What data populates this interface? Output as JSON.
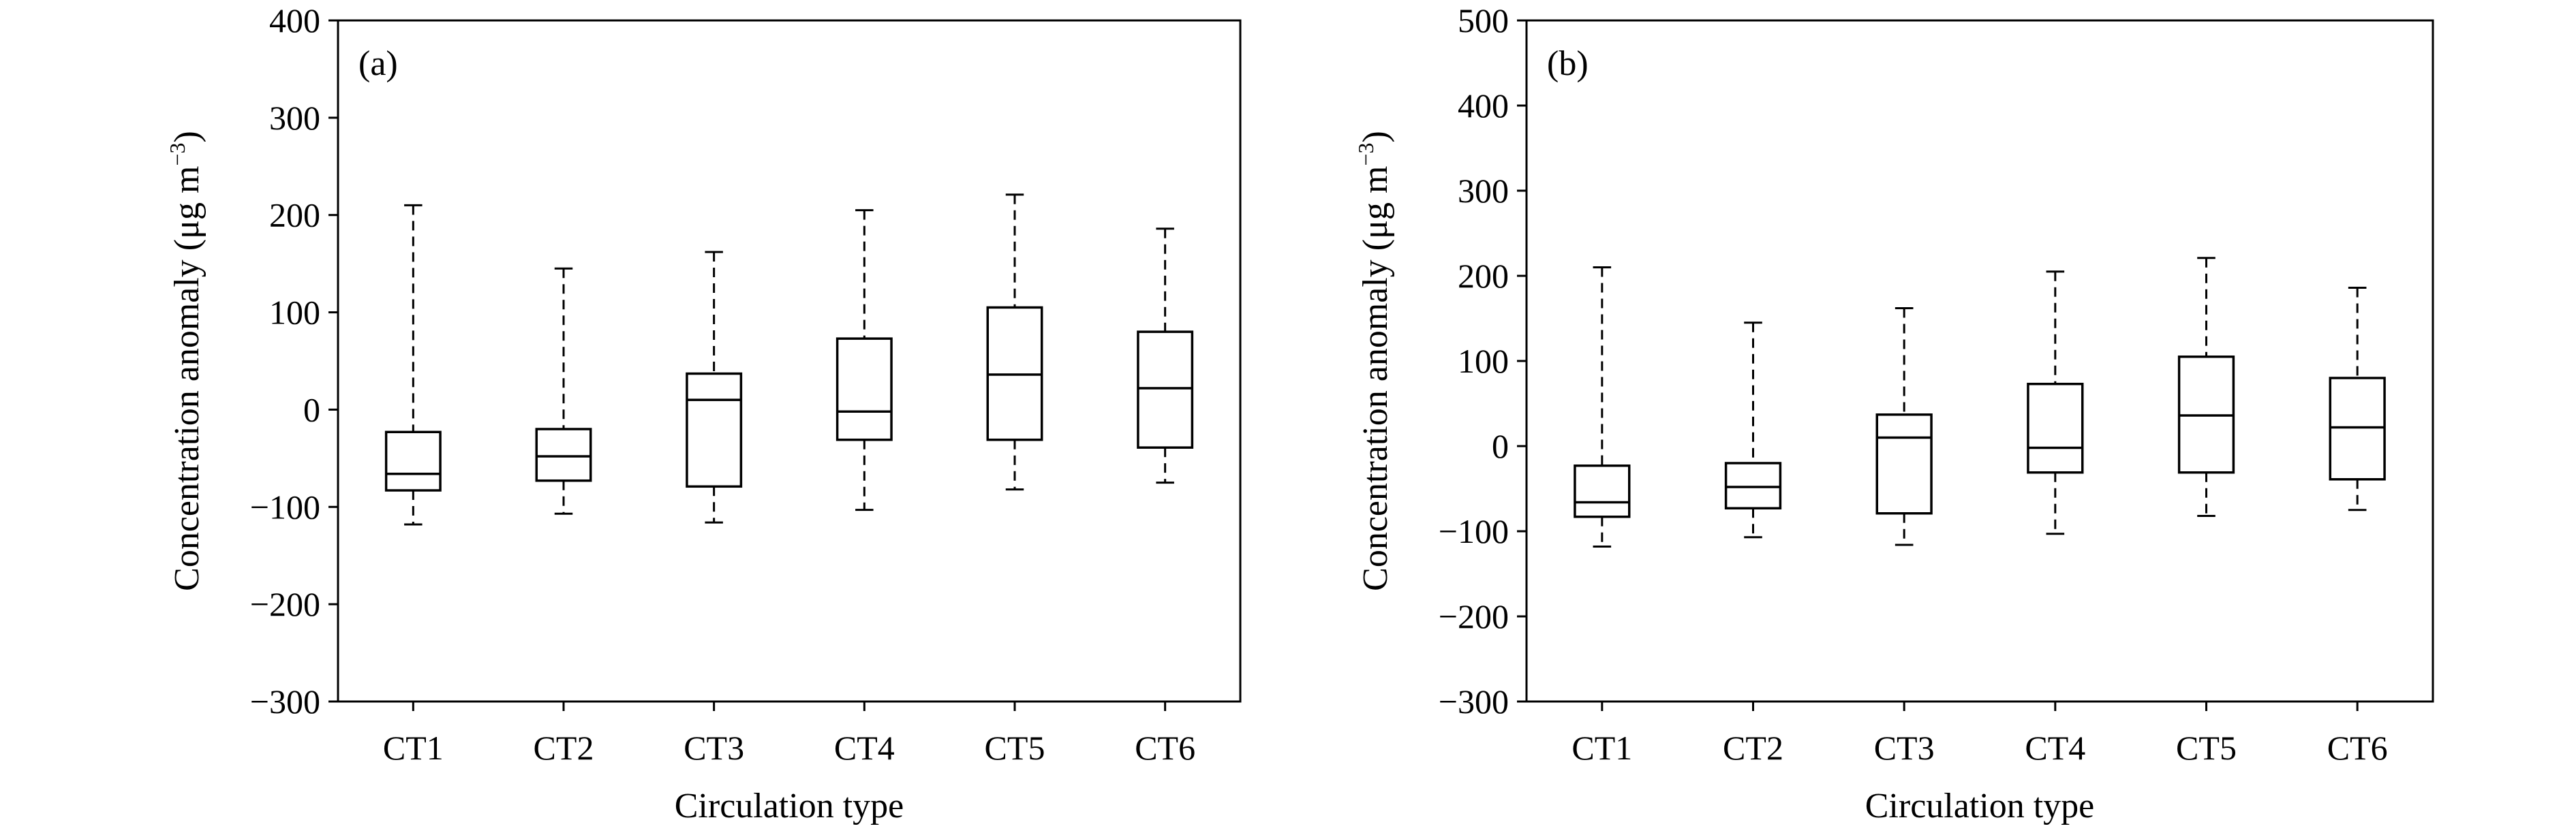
{
  "chart_data": [
    {
      "type": "boxplot",
      "panel_label": "(a)",
      "xlabel": "Circulation type",
      "ylabel_main": "Concentration anomaly (μg m",
      "ylabel_sup": "−3",
      "ylabel_end": ")",
      "ylim": [
        -300,
        400
      ],
      "yticks": [
        400,
        300,
        200,
        100,
        0,
        -100,
        -200,
        -300
      ],
      "ytick_labels": [
        "400",
        "300",
        "200",
        "100",
        "0",
        "−100",
        "−200",
        "−300"
      ],
      "categories": [
        "CT1",
        "CT2",
        "CT3",
        "CT4",
        "CT5",
        "CT6"
      ],
      "boxes": [
        {
          "min": -118,
          "q1": -83,
          "median": -66,
          "q3": -23,
          "max": 210
        },
        {
          "min": -107,
          "q1": -73,
          "median": -48,
          "q3": -20,
          "max": 145
        },
        {
          "min": -116,
          "q1": -79,
          "median": 10,
          "q3": 37,
          "max": 162
        },
        {
          "min": -103,
          "q1": -31,
          "median": -2,
          "q3": 73,
          "max": 205
        },
        {
          "min": -82,
          "q1": -31,
          "median": 36,
          "q3": 105,
          "max": 221
        },
        {
          "min": -75,
          "q1": -39,
          "median": 22,
          "q3": 80,
          "max": 186
        }
      ]
    },
    {
      "type": "boxplot",
      "panel_label": "(b)",
      "xlabel": "Circulation type",
      "ylabel_main": "Concentration anomaly (μg m",
      "ylabel_sup": "−3",
      "ylabel_end": ")",
      "ylim": [
        -300,
        500
      ],
      "yticks": [
        500,
        400,
        300,
        200,
        100,
        0,
        -100,
        -200,
        -300
      ],
      "ytick_labels": [
        "500",
        "400",
        "300",
        "200",
        "100",
        "0",
        "−100",
        "−200",
        "−300"
      ],
      "categories": [
        "CT1",
        "CT2",
        "CT3",
        "CT4",
        "CT5",
        "CT6"
      ],
      "boxes": [
        {
          "min": -118,
          "q1": -83,
          "median": -66,
          "q3": -23,
          "max": 210
        },
        {
          "min": -107,
          "q1": -73,
          "median": -48,
          "q3": -20,
          "max": 145
        },
        {
          "min": -116,
          "q1": -79,
          "median": 10,
          "q3": 37,
          "max": 162
        },
        {
          "min": -103,
          "q1": -31,
          "median": -2,
          "q3": 73,
          "max": 205
        },
        {
          "min": -82,
          "q1": -31,
          "median": 36,
          "q3": 105,
          "max": 221
        },
        {
          "min": -75,
          "q1": -39,
          "median": 22,
          "q3": 80,
          "max": 186
        }
      ]
    }
  ]
}
